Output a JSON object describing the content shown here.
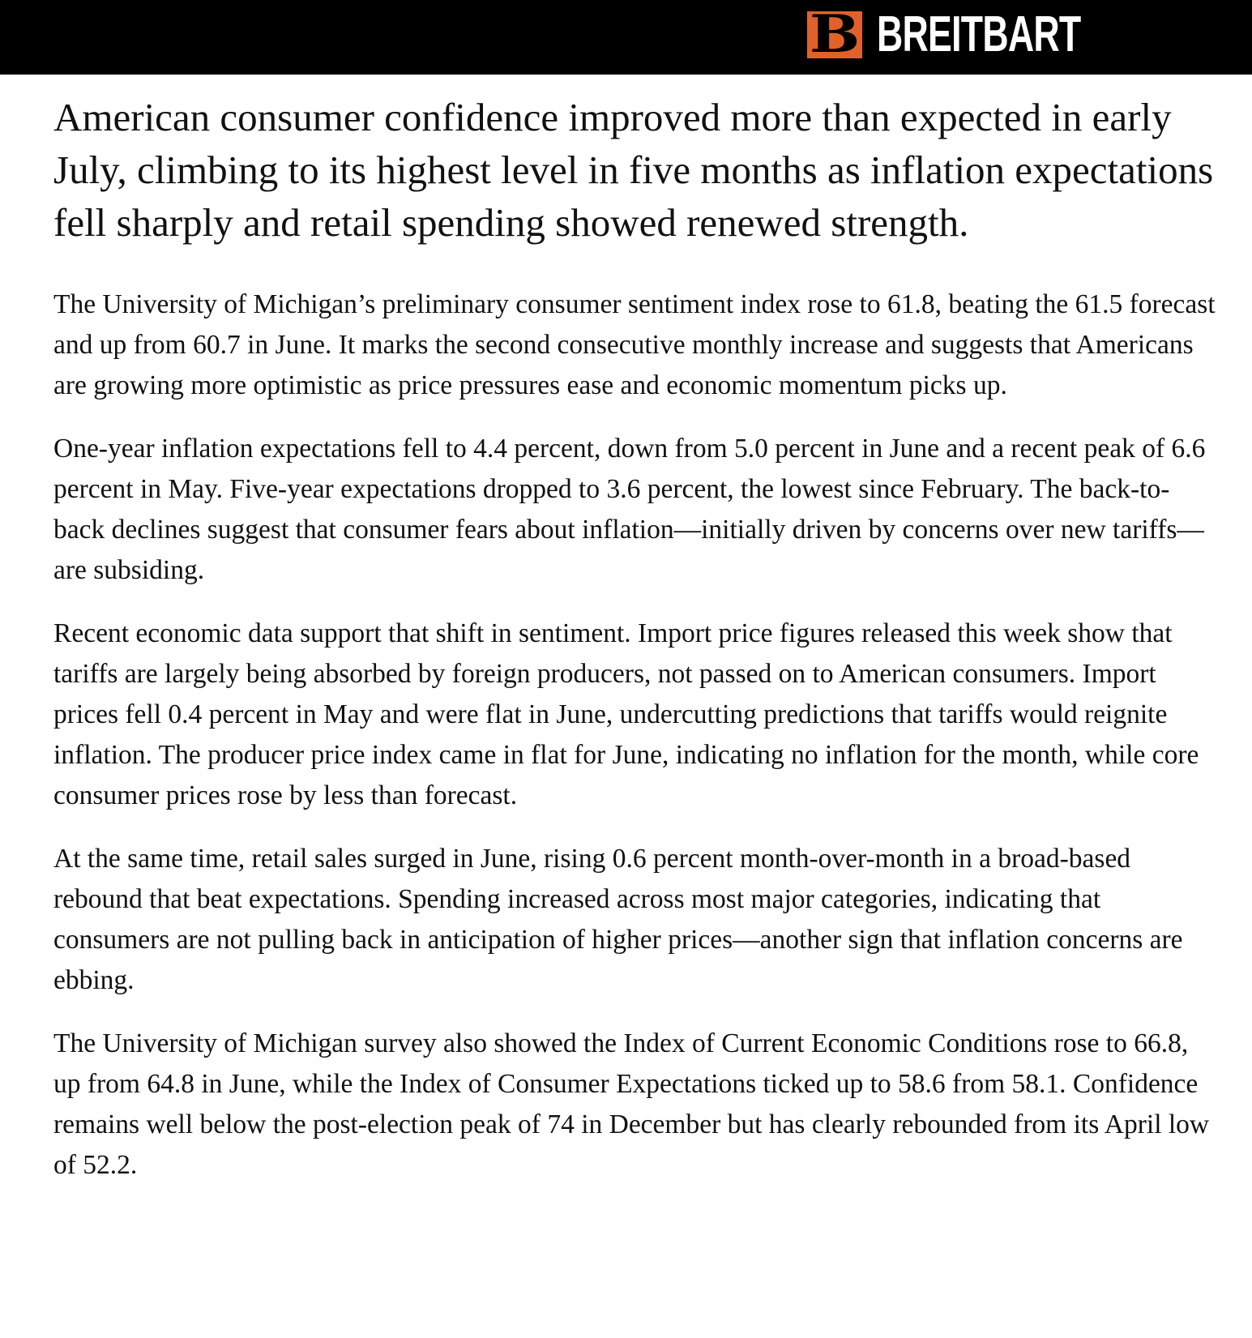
{
  "brand": {
    "name": "BREITBART",
    "logo_letter": "B",
    "color": "#e0622a"
  },
  "article": {
    "headline": "American consumer confidence improved more than expected in early July, climbing to its highest level in five months as inflation expectations fell sharply and retail spending showed renewed strength.",
    "paragraphs": [
      "The University of Michigan’s preliminary consumer sentiment index rose to 61.8, beating the 61.5 forecast and up from 60.7 in June. It marks the second consecutive monthly increase and suggests that Americans are growing more optimistic as price pressures ease and economic momentum picks up.",
      "One-year inflation expectations fell to 4.4 percent, down from 5.0 percent in June and a recent peak of 6.6 percent in May. Five-year expectations dropped to 3.6 percent, the lowest since February. The back-to-back declines suggest that consumer fears about inflation—initially driven by concerns over new tariffs—are subsiding.",
      "Recent economic data support that shift in sentiment. Import price figures released this week show that tariffs are largely being absorbed by foreign producers, not passed on to American consumers. Import prices fell 0.4 percent in May and were flat in June, undercutting predictions that tariffs would reignite inflation. The producer price index came in flat for June, indicating no inflation for the month, while core consumer prices rose by less than forecast.",
      "At the same time, retail sales surged in June, rising 0.6 percent month-over-month in a broad-based rebound that beat expectations. Spending increased across most major categories, indicating that consumers are not pulling back in anticipation of higher prices—another sign that inflation concerns are ebbing.",
      "The University of Michigan survey also showed the Index of Current Economic Conditions rose to 66.8, up from 64.8 in June, while the Index of Consumer Expectations ticked up to 58.6 from 58.1. Confidence remains well below the post-election peak of 74 in December but has clearly rebounded from its April low of 52.2."
    ]
  }
}
